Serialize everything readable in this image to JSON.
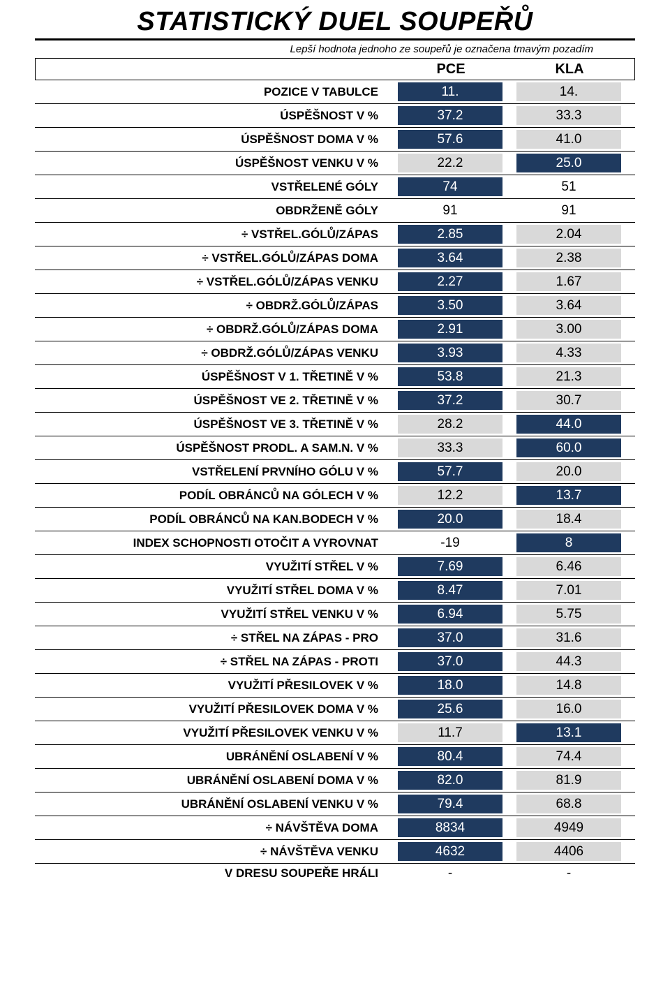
{
  "title": "STATISTICKÝ DUEL SOUPEŘŮ",
  "subtitle": "Lepší hodnota jednoho ze soupeřů je označena tmavým pozadím",
  "header": {
    "team1": "PCE",
    "team2": "KLA"
  },
  "colors": {
    "neutral_bg": "#d9d9d9",
    "better_bg": "#1f3a5f",
    "better_fg": "#ffffff",
    "text": "#000000"
  },
  "rows": [
    {
      "label": "POZICE V TABULCE",
      "a": "11.",
      "b": "14.",
      "better": "a"
    },
    {
      "label": "ÚSPĚŠNOST V %",
      "a": "37.2",
      "b": "33.3",
      "better": "a"
    },
    {
      "label": "ÚSPĚŠNOST DOMA V %",
      "a": "57.6",
      "b": "41.0",
      "better": "a"
    },
    {
      "label": "ÚSPĚŠNOST VENKU V %",
      "a": "22.2",
      "b": "25.0",
      "better": "b"
    },
    {
      "label": "VSTŘELENÉ GÓLY",
      "a": "74",
      "b": "51",
      "better": "a",
      "b_plain": true
    },
    {
      "label": "OBDRŽENĚ GÓLY",
      "a": "91",
      "b": "91",
      "better": "none",
      "a_plain": true,
      "b_plain": true
    },
    {
      "label": "÷ VSTŘEL.GÓLŮ/ZÁPAS",
      "a": "2.85",
      "b": "2.04",
      "better": "a"
    },
    {
      "label": "÷ VSTŘEL.GÓLŮ/ZÁPAS DOMA",
      "a": "3.64",
      "b": "2.38",
      "better": "a"
    },
    {
      "label": "÷ VSTŘEL.GÓLŮ/ZÁPAS VENKU",
      "a": "2.27",
      "b": "1.67",
      "better": "a"
    },
    {
      "label": "÷ OBDRŽ.GÓLŮ/ZÁPAS",
      "a": "3.50",
      "b": "3.64",
      "better": "a"
    },
    {
      "label": "÷ OBDRŽ.GÓLŮ/ZÁPAS DOMA",
      "a": "2.91",
      "b": "3.00",
      "better": "a"
    },
    {
      "label": "÷ OBDRŽ.GÓLŮ/ZÁPAS VENKU",
      "a": "3.93",
      "b": "4.33",
      "better": "a"
    },
    {
      "label": "ÚSPĚŠNOST V 1. TŘETINĚ V %",
      "a": "53.8",
      "b": "21.3",
      "better": "a"
    },
    {
      "label": "ÚSPĚŠNOST VE 2. TŘETINĚ V %",
      "a": "37.2",
      "b": "30.7",
      "better": "a"
    },
    {
      "label": "ÚSPĚŠNOST VE 3. TŘETINĚ V %",
      "a": "28.2",
      "b": "44.0",
      "better": "b"
    },
    {
      "label": "ÚSPĚŠNOST PRODL. A SAM.N. V %",
      "a": "33.3",
      "b": "60.0",
      "better": "b"
    },
    {
      "label": "VSTŘELENÍ PRVNÍHO GÓLU V %",
      "a": "57.7",
      "b": "20.0",
      "better": "a"
    },
    {
      "label": "PODÍL OBRÁNCŮ NA GÓLECH V %",
      "a": "12.2",
      "b": "13.7",
      "better": "b"
    },
    {
      "label": "PODÍL OBRÁNCŮ NA KAN.BODECH V %",
      "a": "20.0",
      "b": "18.4",
      "better": "a"
    },
    {
      "label": "INDEX SCHOPNOSTI OTOČIT A VYROVNAT",
      "a": "-19",
      "b": "8",
      "better": "b",
      "a_plain": true
    },
    {
      "label": "VYUŽITÍ STŘEL V %",
      "a": "7.69",
      "b": "6.46",
      "better": "a"
    },
    {
      "label": "VYUŽITÍ STŘEL DOMA V %",
      "a": "8.47",
      "b": "7.01",
      "better": "a"
    },
    {
      "label": "VYUŽITÍ STŘEL VENKU V %",
      "a": "6.94",
      "b": "5.75",
      "better": "a"
    },
    {
      "label": "÷ STŘEL NA ZÁPAS - PRO",
      "a": "37.0",
      "b": "31.6",
      "better": "a"
    },
    {
      "label": "÷ STŘEL NA ZÁPAS - PROTI",
      "a": "37.0",
      "b": "44.3",
      "better": "a"
    },
    {
      "label": "VYUŽITÍ PŘESILOVEK V %",
      "a": "18.0",
      "b": "14.8",
      "better": "a"
    },
    {
      "label": "VYUŽITÍ PŘESILOVEK DOMA V %",
      "a": "25.6",
      "b": "16.0",
      "better": "a"
    },
    {
      "label": "VYUŽITÍ PŘESILOVEK VENKU V %",
      "a": "11.7",
      "b": "13.1",
      "better": "b"
    },
    {
      "label": "UBRÁNĚNÍ OSLABENÍ V %",
      "a": "80.4",
      "b": "74.4",
      "better": "a"
    },
    {
      "label": "UBRÁNĚNÍ OSLABENÍ DOMA V %",
      "a": "82.0",
      "b": "81.9",
      "better": "a"
    },
    {
      "label": "UBRÁNĚNÍ OSLABENÍ VENKU V %",
      "a": "79.4",
      "b": "68.8",
      "better": "a"
    },
    {
      "label": "÷ NÁVŠTĚVA DOMA",
      "a": "8834",
      "b": "4949",
      "better": "a"
    },
    {
      "label": "÷ NÁVŠTĚVA VENKU",
      "a": "4632",
      "b": "4406",
      "better": "a"
    }
  ],
  "footer": {
    "label": "V DRESU SOUPEŘE HRÁLI",
    "a": "-",
    "b": "-"
  }
}
